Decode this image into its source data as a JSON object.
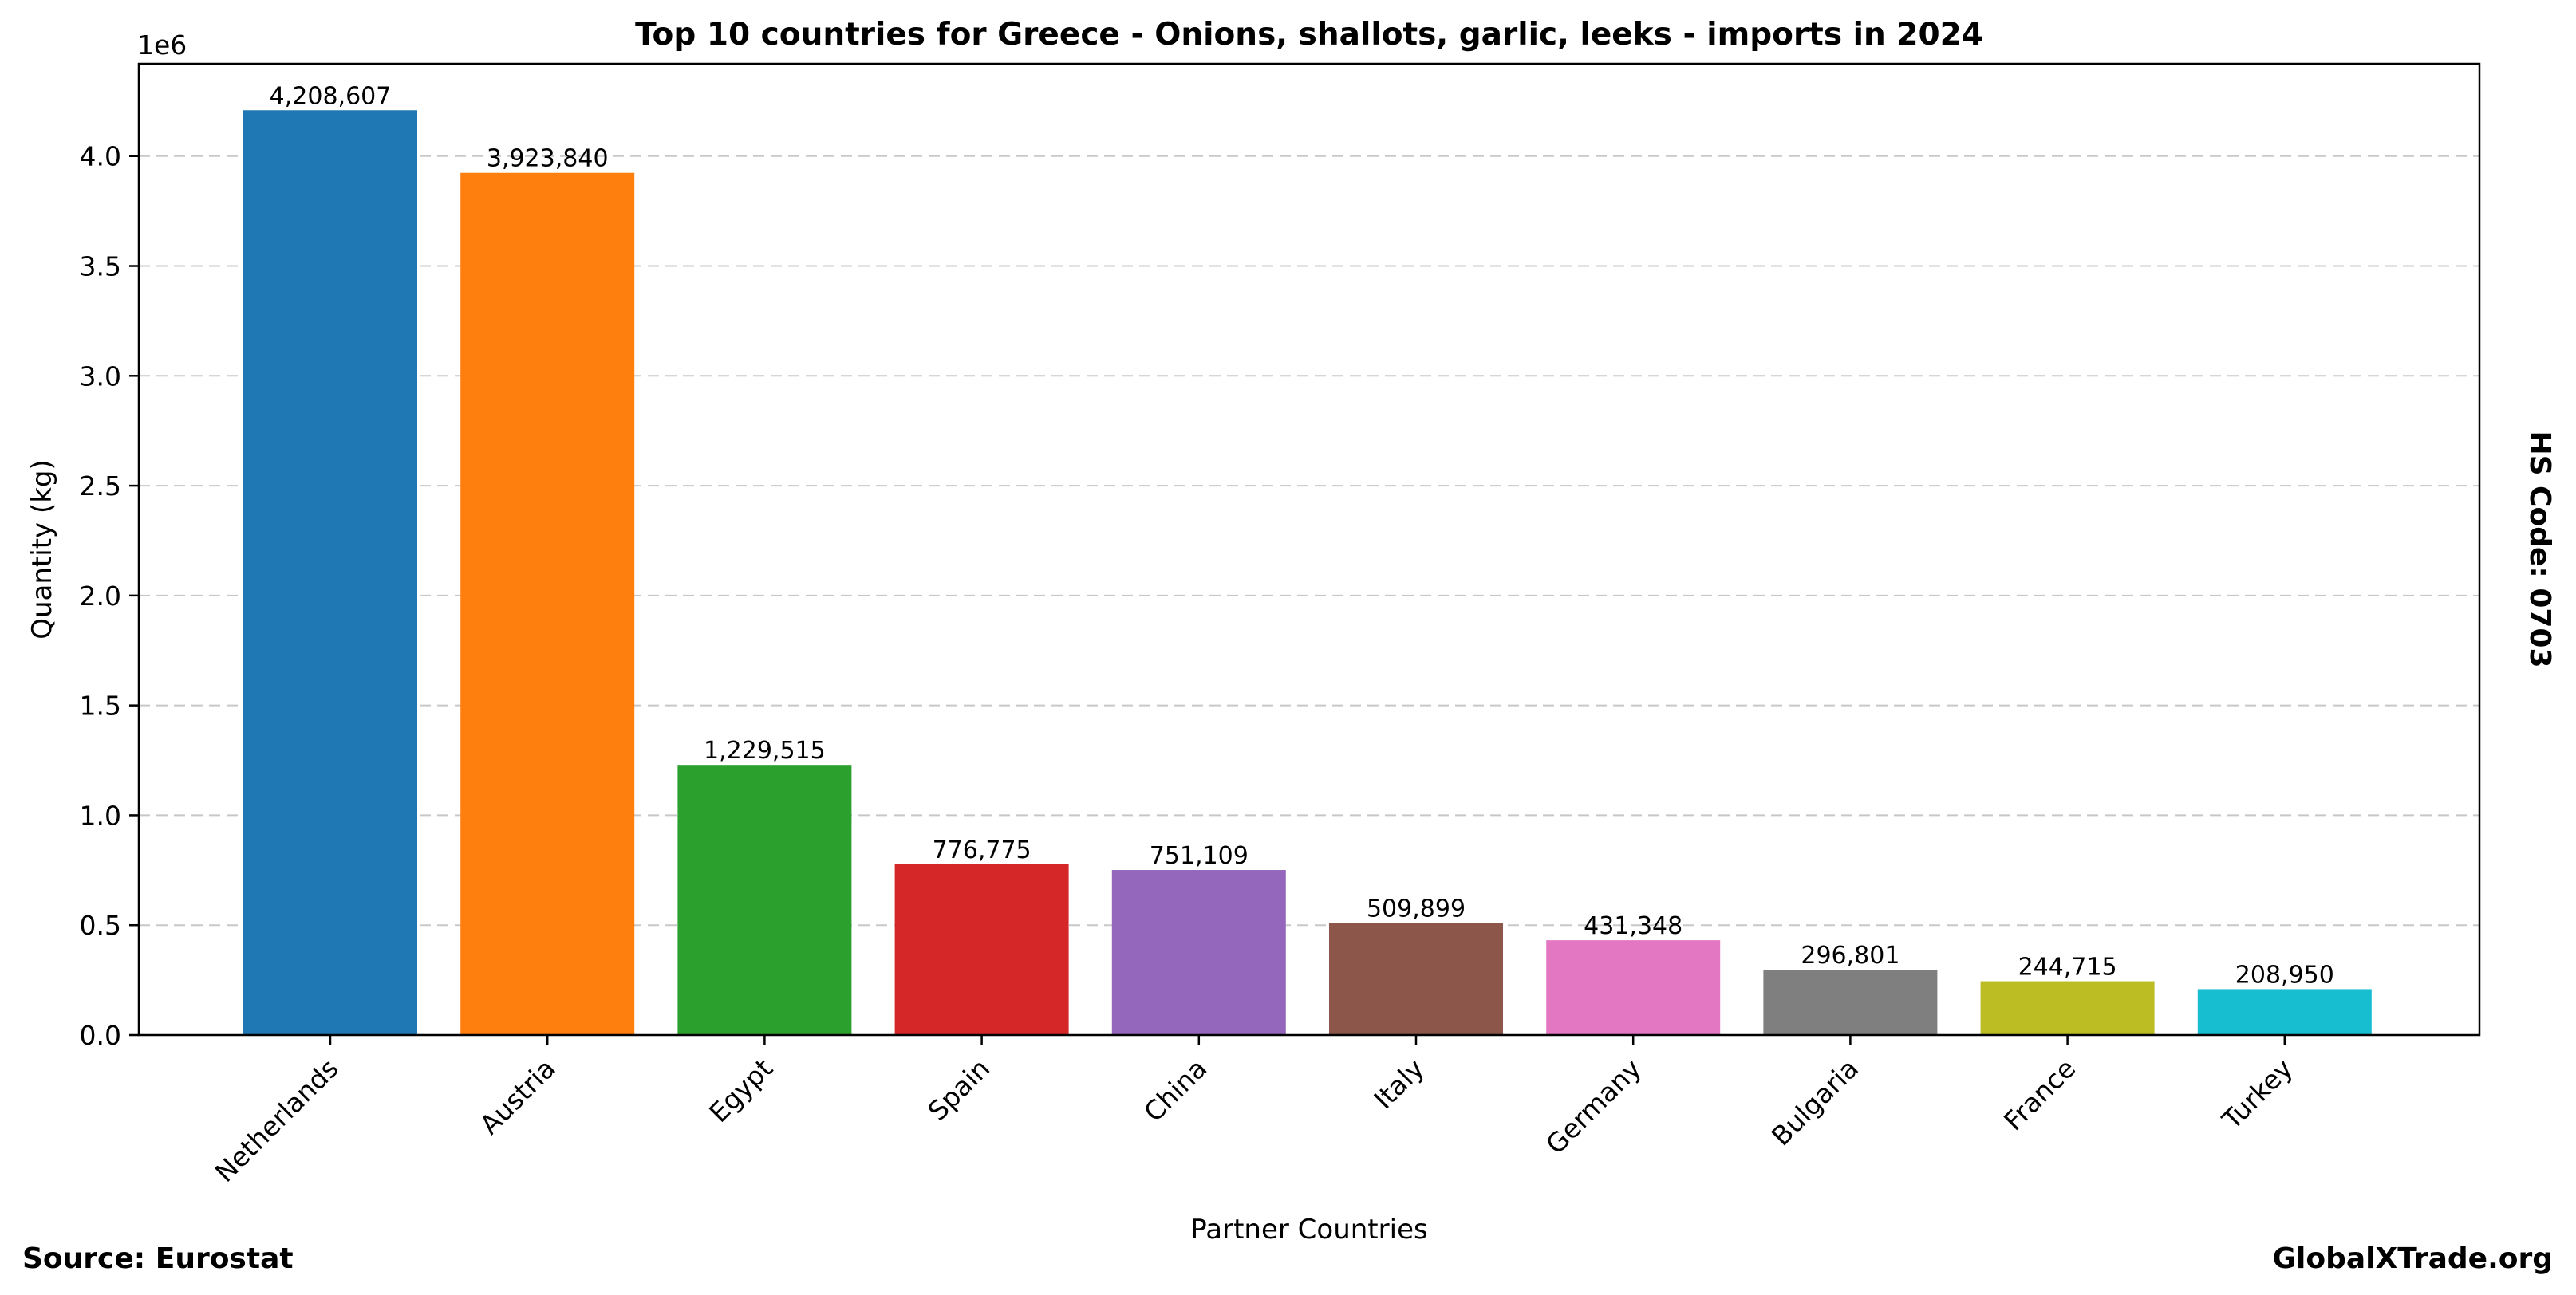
{
  "chart_data": {
    "type": "bar",
    "title": "Top 10 countries for Greece - Onions, shallots, garlic, leeks - imports in 2024",
    "xlabel": "Partner Countries",
    "ylabel": "Quantity (kg)",
    "y_offset_label": "1e6",
    "ylim": [
      0,
      4420000
    ],
    "yticks": [
      0,
      500000,
      1000000,
      1500000,
      2000000,
      2500000,
      3000000,
      3500000,
      4000000
    ],
    "ytick_labels": [
      "0.0",
      "0.5",
      "1.0",
      "1.5",
      "2.0",
      "2.5",
      "3.0",
      "3.5",
      "4.0"
    ],
    "grid": "horizontal dashed",
    "categories": [
      "Netherlands",
      "Austria",
      "Egypt",
      "Spain",
      "China",
      "Italy",
      "Germany",
      "Bulgaria",
      "France",
      "Turkey"
    ],
    "values": [
      4208607,
      3923840,
      1229515,
      776775,
      751109,
      509899,
      431348,
      296801,
      244715,
      208950
    ],
    "value_labels": [
      "4,208,607",
      "3,923,840",
      "1,229,515",
      "776,775",
      "751,109",
      "509,899",
      "431,348",
      "296,801",
      "244,715",
      "208,950"
    ],
    "colors": [
      "#1f77b4",
      "#ff7f0e",
      "#2ca02c",
      "#d62728",
      "#9467bd",
      "#8c564b",
      "#e377c2",
      "#7f7f7f",
      "#bcbd22",
      "#17becf"
    ]
  },
  "footer": {
    "source": "Source: Eurostat",
    "site": "GlobalXTrade.org",
    "hs_code": "HS Code: 0703"
  }
}
